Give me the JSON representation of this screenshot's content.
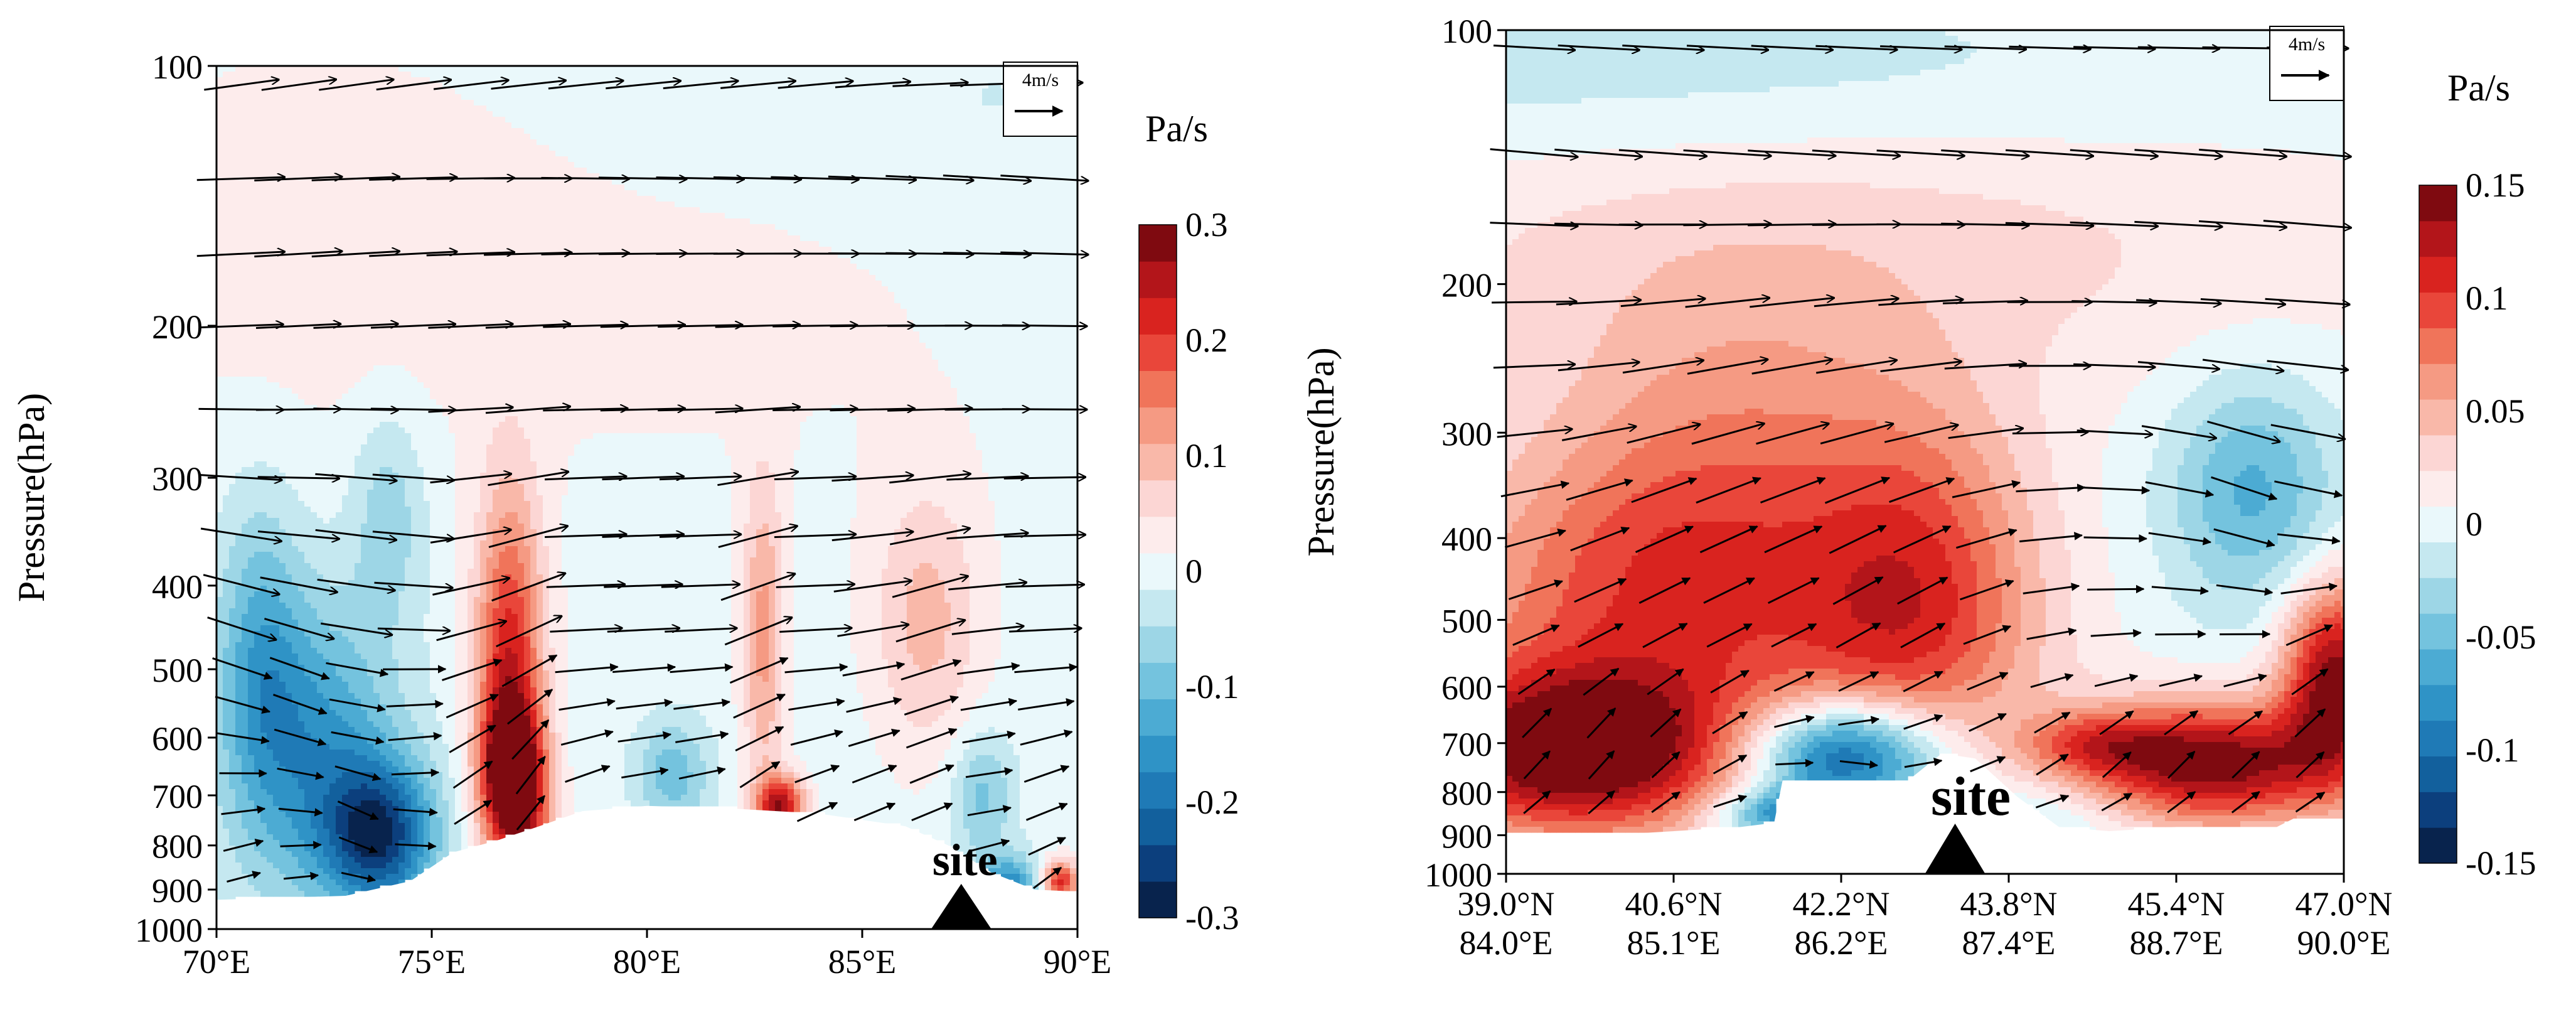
{
  "chart_data": [
    {
      "type": "heatmap",
      "panel": "left",
      "ylabel": "Pressure(hPa)",
      "xlabel": "",
      "ylim": [
        1000,
        100
      ],
      "yscale": "log",
      "yticks": [
        "100",
        "200",
        "300",
        "400",
        "500",
        "600",
        "700",
        "800",
        "900",
        "1000"
      ],
      "yvals": [
        100,
        200,
        300,
        400,
        500,
        600,
        700,
        800,
        900,
        1000
      ],
      "xlim": [
        70,
        90
      ],
      "xticks": [
        "70°E",
        "75°E",
        "80°E",
        "85°E",
        "90°E"
      ],
      "xvals": [
        70,
        75,
        80,
        85,
        90
      ],
      "colorbar": {
        "unit": "Pa/s",
        "min": -0.3,
        "max": 0.3,
        "ticks": [
          "0.3",
          "0.2",
          "0.1",
          "0",
          "-0.1",
          "-0.2",
          "-0.3"
        ],
        "tickvals": [
          0.3,
          0.2,
          0.1,
          0,
          -0.1,
          -0.2,
          -0.3
        ]
      },
      "reference_vector": "4m/s",
      "site_label": "site",
      "site_x": 87.3,
      "grid": false,
      "features": [
        {
          "x": 72.3,
          "p": 620,
          "w": -0.15,
          "sx": 1.3,
          "sp": 0.28
        },
        {
          "x": 73.8,
          "p": 780,
          "w": -0.24,
          "sx": 0.9,
          "sp": 0.14
        },
        {
          "x": 71.0,
          "p": 480,
          "w": -0.1,
          "sx": 0.7,
          "sp": 0.3
        },
        {
          "x": 74.0,
          "p": 330,
          "w": -0.07,
          "sx": 0.6,
          "sp": 0.2
        },
        {
          "x": 76.8,
          "p": 520,
          "w": 0.24,
          "sx": 0.55,
          "sp": 0.35
        },
        {
          "x": 76.9,
          "p": 660,
          "w": 0.27,
          "sx": 0.5,
          "sp": 0.12
        },
        {
          "x": 77.3,
          "p": 800,
          "w": 0.08,
          "sx": 0.5,
          "sp": 0.1
        },
        {
          "x": 82.7,
          "p": 460,
          "w": 0.12,
          "sx": 0.35,
          "sp": 0.3
        },
        {
          "x": 83.1,
          "p": 725,
          "w": 0.26,
          "sx": 0.4,
          "sp": 0.06
        },
        {
          "x": 86.5,
          "p": 440,
          "w": 0.09,
          "sx": 0.9,
          "sp": 0.25
        },
        {
          "x": 80.6,
          "p": 660,
          "w": -0.1,
          "sx": 0.6,
          "sp": 0.1
        },
        {
          "x": 87.8,
          "p": 700,
          "w": -0.09,
          "sx": 0.5,
          "sp": 0.12
        },
        {
          "x": 88.4,
          "p": 900,
          "w": -0.18,
          "sx": 0.5,
          "sp": 0.06
        },
        {
          "x": 89.6,
          "p": 880,
          "w": 0.22,
          "sx": 0.3,
          "sp": 0.04
        },
        {
          "x": 72.0,
          "p": 150,
          "w": 0.03,
          "sx": 3.5,
          "sp": 0.35
        },
        {
          "x": 81.0,
          "p": 200,
          "w": 0.02,
          "sx": 7.0,
          "sp": 0.4
        },
        {
          "x": 88.0,
          "p": 110,
          "w": -0.02,
          "sx": 1.8,
          "sp": 0.15
        }
      ],
      "terrain": [
        {
          "x": 70.0,
          "p": 925
        },
        {
          "x": 71.5,
          "p": 920
        },
        {
          "x": 73.0,
          "p": 915
        },
        {
          "x": 74.5,
          "p": 880
        },
        {
          "x": 75.5,
          "p": 815
        },
        {
          "x": 76.5,
          "p": 790
        },
        {
          "x": 77.5,
          "p": 760
        },
        {
          "x": 78.5,
          "p": 730
        },
        {
          "x": 80.0,
          "p": 720
        },
        {
          "x": 82.0,
          "p": 725
        },
        {
          "x": 84.0,
          "p": 735
        },
        {
          "x": 86.0,
          "p": 760
        },
        {
          "x": 87.0,
          "p": 800
        },
        {
          "x": 88.0,
          "p": 860
        },
        {
          "x": 89.0,
          "p": 900
        },
        {
          "x": 90.0,
          "p": 905
        }
      ]
    },
    {
      "type": "heatmap",
      "panel": "right",
      "ylabel": "Pressure(hPa)",
      "xlabel": "",
      "ylim": [
        1000,
        100
      ],
      "yscale": "log",
      "yticks": [
        "100",
        "200",
        "300",
        "400",
        "500",
        "600",
        "700",
        "800",
        "900",
        "1000"
      ],
      "yvals": [
        100,
        200,
        300,
        400,
        500,
        600,
        700,
        800,
        900,
        1000
      ],
      "xlim": [
        0,
        5
      ],
      "xticks_lat": [
        "39.0°N",
        "40.6°N",
        "42.2°N",
        "43.8°N",
        "45.4°N",
        "47.0°N"
      ],
      "xticks_lon": [
        "84.0°E",
        "85.1°E",
        "86.2°E",
        "87.4°E",
        "88.7°E",
        "90.0°E"
      ],
      "xvals": [
        0,
        1,
        2,
        3,
        4,
        5
      ],
      "colorbar": {
        "unit": "Pa/s",
        "min": -0.15,
        "max": 0.15,
        "ticks": [
          "0.15",
          "0.1",
          "0.05",
          "0",
          "-0.05",
          "-0.1",
          "-0.15"
        ],
        "tickvals": [
          0.15,
          0.1,
          0.05,
          0,
          -0.05,
          -0.1,
          -0.15
        ]
      },
      "reference_vector": "4m/s",
      "site_label": "site",
      "site_x": 2.68,
      "grid": false,
      "features": [
        {
          "x": 0.4,
          "p": 720,
          "w": 0.15,
          "sx": 0.7,
          "sp": 0.16
        },
        {
          "x": 0.8,
          "p": 480,
          "w": 0.08,
          "sx": 0.9,
          "sp": 0.3
        },
        {
          "x": 1.4,
          "p": 330,
          "w": 0.05,
          "sx": 0.8,
          "sp": 0.35
        },
        {
          "x": 2.5,
          "p": 420,
          "w": 0.07,
          "sx": 0.5,
          "sp": 0.3
        },
        {
          "x": 2.4,
          "p": 560,
          "w": 0.04,
          "sx": 0.6,
          "sp": 0.2
        },
        {
          "x": 2.0,
          "p": 720,
          "w": -0.14,
          "sx": 0.4,
          "sp": 0.1
        },
        {
          "x": 1.7,
          "p": 850,
          "w": -0.1,
          "sx": 0.3,
          "sp": 0.05
        },
        {
          "x": 4.2,
          "p": 740,
          "w": 0.15,
          "sx": 0.6,
          "sp": 0.12
        },
        {
          "x": 4.95,
          "p": 580,
          "w": 0.14,
          "sx": 0.22,
          "sp": 0.18
        },
        {
          "x": 4.45,
          "p": 350,
          "w": -0.06,
          "sx": 0.35,
          "sp": 0.22
        },
        {
          "x": 2.0,
          "p": 180,
          "w": 0.03,
          "sx": 2.5,
          "sp": 0.3
        },
        {
          "x": 1.0,
          "p": 115,
          "w": -0.02,
          "sx": 2.5,
          "sp": 0.18
        },
        {
          "x": 3.1,
          "p": 860,
          "w": -0.03,
          "sx": 0.5,
          "sp": 0.08
        },
        {
          "x": 3.5,
          "p": 700,
          "w": 0.05,
          "sx": 0.3,
          "sp": 0.06
        }
      ],
      "terrain": [
        {
          "x": 0.0,
          "p": 900
        },
        {
          "x": 0.8,
          "p": 895
        },
        {
          "x": 1.4,
          "p": 880
        },
        {
          "x": 1.6,
          "p": 870
        },
        {
          "x": 1.65,
          "p": 775
        },
        {
          "x": 2.4,
          "p": 775
        },
        {
          "x": 2.6,
          "p": 720
        },
        {
          "x": 2.8,
          "p": 730
        },
        {
          "x": 3.05,
          "p": 810
        },
        {
          "x": 3.3,
          "p": 880
        },
        {
          "x": 3.6,
          "p": 890
        },
        {
          "x": 4.0,
          "p": 880
        },
        {
          "x": 4.6,
          "p": 880
        },
        {
          "x": 4.7,
          "p": 860
        },
        {
          "x": 5.0,
          "p": 860
        }
      ]
    }
  ]
}
